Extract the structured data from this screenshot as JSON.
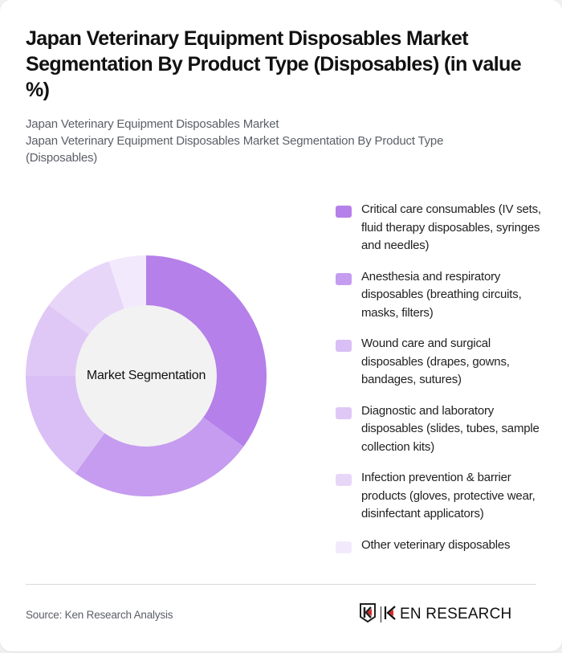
{
  "header": {
    "title": "Japan Veterinary Equipment Disposables Market Segmentation By Product Type (Disposables) (in value %)",
    "subtitle_line1": "Japan Veterinary Equipment Disposables Market",
    "subtitle_line2": "Japan Veterinary Equipment Disposables Market Segmentation By Product Type (Disposables)"
  },
  "chart": {
    "center_label": "Market Segmentation"
  },
  "legend": [
    {
      "label": "Critical care consumables (IV sets, fluid therapy disposables, syringes and needles)",
      "color": "#b580ea"
    },
    {
      "label": "Anesthesia and respiratory disposables (breathing circuits, masks, filters)",
      "color": "#c59cef"
    },
    {
      "label": "Wound care and surgical disposables (drapes, gowns, bandages, sutures)",
      "color": "#d9bff5"
    },
    {
      "label": "Diagnostic and laboratory disposables (slides, tubes, sample collection kits)",
      "color": "#e0c8f6"
    },
    {
      "label": "Infection prevention & barrier products (gloves, protective wear, disinfectant applicators)",
      "color": "#e8d6f9"
    },
    {
      "label": "Other veterinary disposables",
      "color": "#f2eafc"
    }
  ],
  "footer": {
    "source": "Source: Ken Research Analysis",
    "logo_text": "KEN RESEARCH",
    "logo_icon": "ken-research-k-shield-icon"
  },
  "chart_data": {
    "type": "pie",
    "subtype": "donut",
    "title": "Japan Veterinary Equipment Disposables Market Segmentation By Product Type (Disposables) (in value %)",
    "center_label": "Market Segmentation",
    "categories": [
      "Critical care consumables (IV sets, fluid therapy disposables, syringes and needles)",
      "Anesthesia and respiratory disposables (breathing circuits, masks, filters)",
      "Wound care and surgical disposables (drapes, gowns, bandages, sutures)",
      "Diagnostic and laboratory disposables (slides, tubes, sample collection kits)",
      "Infection prevention & barrier products (gloves, protective wear, disinfectant applicators)",
      "Other veterinary disposables"
    ],
    "values": [
      35,
      25,
      15,
      10,
      10,
      5
    ],
    "unit": "%",
    "colors": [
      "#b580ea",
      "#c59cef",
      "#d9bff5",
      "#e0c8f6",
      "#e8d6f9",
      "#f2eafc"
    ],
    "legend_position": "right",
    "start_angle": "12 o'clock, clockwise"
  }
}
